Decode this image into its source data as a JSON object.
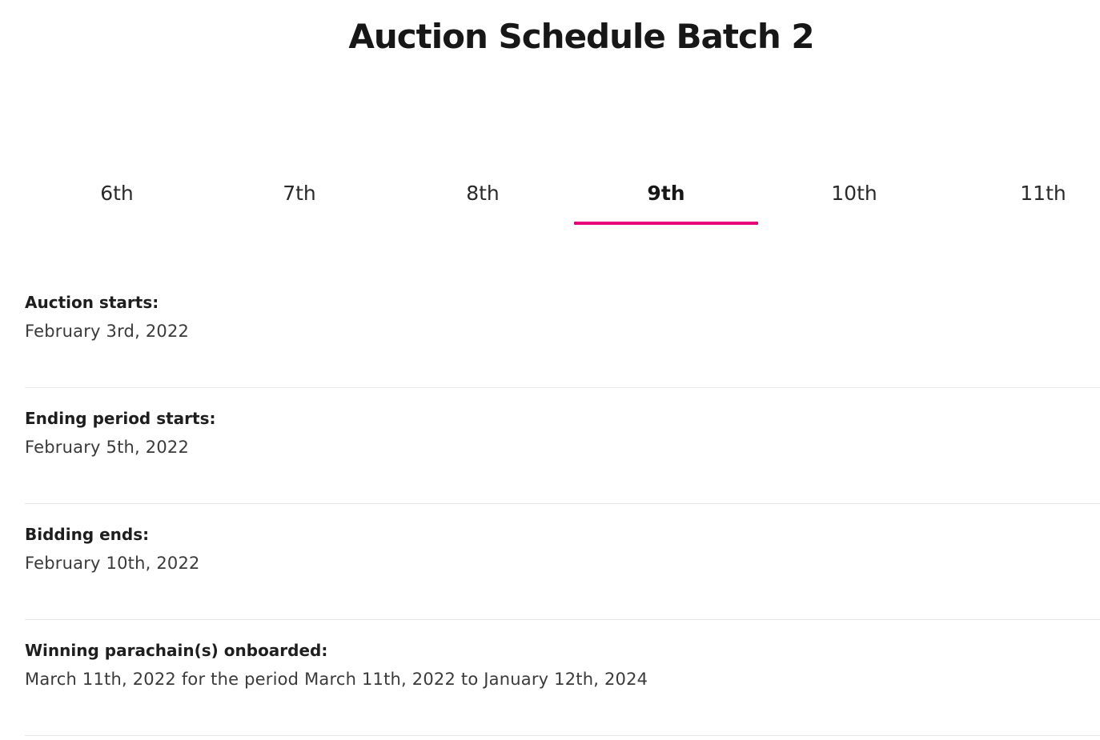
{
  "header": {
    "title": "Auction Schedule Batch 2"
  },
  "tabs": [
    {
      "label": "6th",
      "active": false
    },
    {
      "label": "7th",
      "active": false
    },
    {
      "label": "8th",
      "active": false
    },
    {
      "label": "9th",
      "active": true
    },
    {
      "label": "10th",
      "active": false
    },
    {
      "label": "11th",
      "active": false
    }
  ],
  "colors": {
    "accent": "#e6007a",
    "divider": "#e7e7e7",
    "text_primary": "#1e1e1e",
    "text_secondary": "#3a3a3a"
  },
  "details": [
    {
      "label": "Auction starts:",
      "value": "February 3rd, 2022"
    },
    {
      "label": "Ending period starts:",
      "value": "February 5th, 2022"
    },
    {
      "label": "Bidding ends:",
      "value": "February 10th, 2022"
    },
    {
      "label": "Winning parachain(s) onboarded:",
      "value": "March 11th, 2022 for the period March 11th, 2022 to January 12th, 2024"
    }
  ]
}
